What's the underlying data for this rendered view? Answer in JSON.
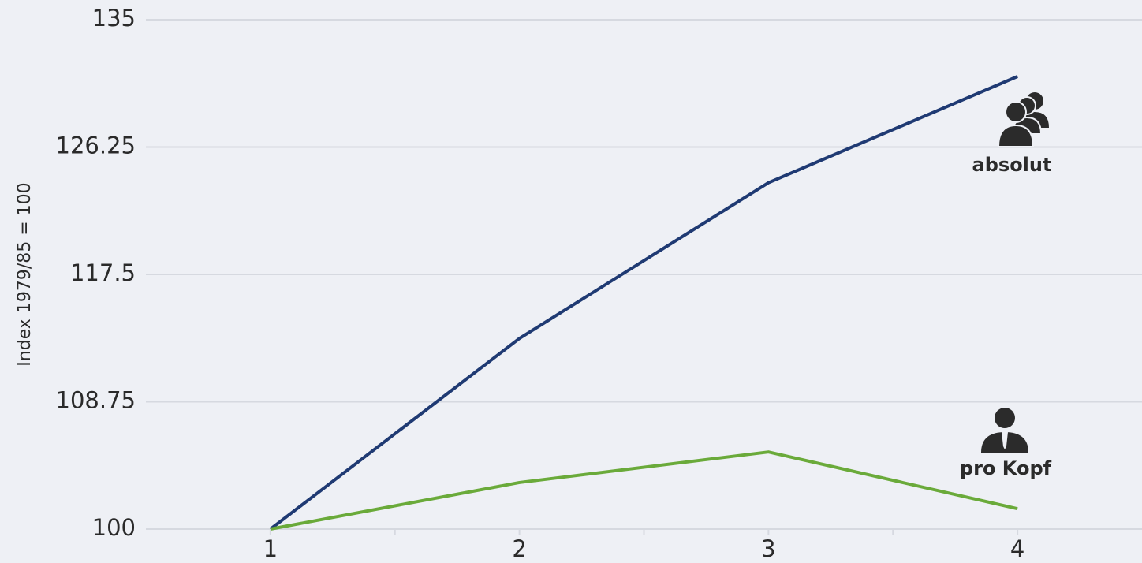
{
  "chart_data": {
    "type": "line",
    "y_label": "Index 1979/85 = 100",
    "x": [
      1,
      2,
      3,
      4
    ],
    "series": [
      {
        "name": "absolut",
        "color": "#1f3a73",
        "values": [
          100,
          113.1,
          123.8,
          131.1
        ]
      },
      {
        "name": "pro Kopf",
        "color": "#6aaa3a",
        "values": [
          100,
          103.2,
          105.3,
          101.4
        ]
      }
    ],
    "xlim": [
      0.5,
      4.5
    ],
    "xticks": [
      1,
      2,
      3,
      4
    ],
    "xminor_ticks": [
      1.5,
      2.5,
      3.5
    ],
    "ylim": [
      100,
      135
    ],
    "yticks": [
      100,
      108.75,
      117.5,
      126.25,
      135
    ],
    "grid": true
  }
}
